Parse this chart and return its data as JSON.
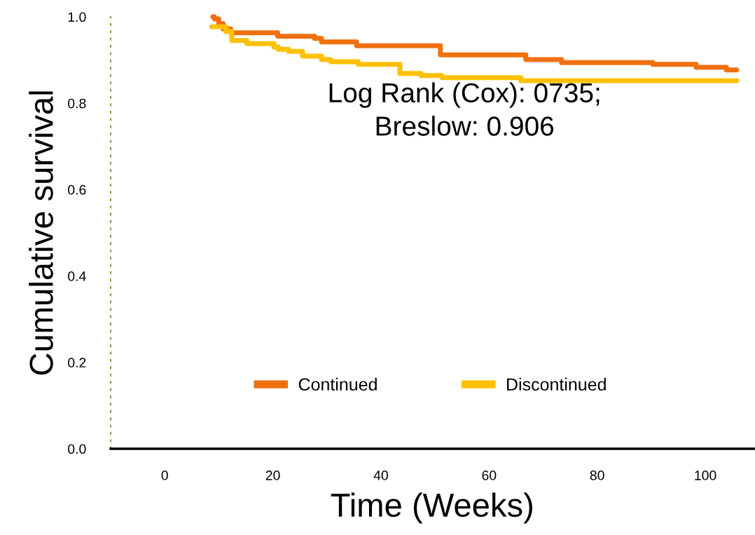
{
  "chart_data": {
    "type": "step",
    "xlabel": "Time (Weeks)",
    "ylabel": "Cumulative survival",
    "xlim": [
      -10,
      109
    ],
    "xticks": [
      0,
      20,
      40,
      60,
      80,
      100
    ],
    "ylim": [
      0,
      1.0
    ],
    "yticks": [
      {
        "value": 0,
        "label": "0.0"
      },
      0.2,
      0.4,
      0.6,
      0.8,
      {
        "value": 1.0,
        "label": "1.0"
      }
    ],
    "grid": false,
    "legend": "bottom",
    "line_style": "solid",
    "marker": "none",
    "annotations": [
      "Log Rank (Cox): 0735;\nBreslow: 0.906"
    ],
    "series": [
      {
        "name": "Continued",
        "color": "#f07010",
        "x": [
          8.9,
          9.2,
          10.0,
          10.8,
          12.2,
          20.9,
          27.7,
          29.0,
          35.5,
          51.0,
          66.8,
          73.4,
          90.3,
          98.3,
          103.9,
          105.8
        ],
        "values": [
          1.0,
          0.995,
          0.984,
          0.972,
          0.963,
          0.955,
          0.95,
          0.942,
          0.933,
          0.912,
          0.901,
          0.894,
          0.89,
          0.883,
          0.877,
          0.877
        ]
      },
      {
        "name": "Discontinued",
        "color": "#ffc000",
        "x": [
          8.7,
          11.3,
          12.4,
          15.2,
          20.2,
          21.0,
          22.9,
          25.5,
          29.0,
          30.7,
          35.8,
          43.5,
          47.4,
          51.3,
          65.9,
          105.8
        ],
        "values": [
          0.977,
          0.966,
          0.945,
          0.938,
          0.93,
          0.925,
          0.92,
          0.909,
          0.901,
          0.896,
          0.89,
          0.869,
          0.864,
          0.859,
          0.852,
          0.852
        ]
      }
    ]
  }
}
